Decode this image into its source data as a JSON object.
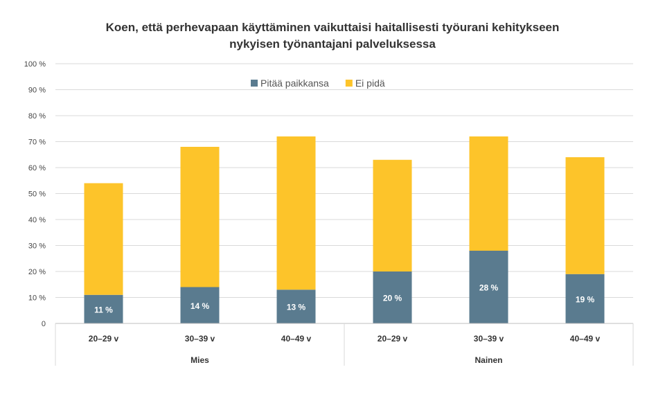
{
  "chart_data": {
    "type": "bar",
    "stacked": true,
    "title_lines": [
      "Koen, että perhevapaan käyttäminen vaikuttaisi haitallisesti työurani kehitykseen",
      "nykyisen työnantajani palveluksessa"
    ],
    "categories": [
      "20–29 v",
      "30–39 v",
      "40–49 v",
      "20–29 v",
      "30–39 v",
      "40–49 v"
    ],
    "groups": [
      {
        "label": "Mies",
        "count": 3
      },
      {
        "label": "Nainen",
        "count": 3
      }
    ],
    "series": [
      {
        "name": "Pitää paikkansa",
        "color": "#5a7b8f",
        "values": [
          11,
          14,
          13,
          20,
          28,
          19
        ],
        "data_labels": [
          "11 %",
          "14 %",
          "13 %",
          "20 %",
          "28 %",
          "19 %"
        ]
      },
      {
        "name": "Ei pidä",
        "color": "#fdc42a",
        "values": [
          43,
          54,
          59,
          43,
          44,
          45
        ]
      }
    ],
    "yticks": [
      "0",
      "10 %",
      "20 %",
      "30 %",
      "40 %",
      "50 %",
      "60 %",
      "70 %",
      "80 %",
      "90 %",
      "100 %"
    ],
    "ylim": [
      0,
      100
    ],
    "grid": true,
    "legend_position": "top"
  }
}
